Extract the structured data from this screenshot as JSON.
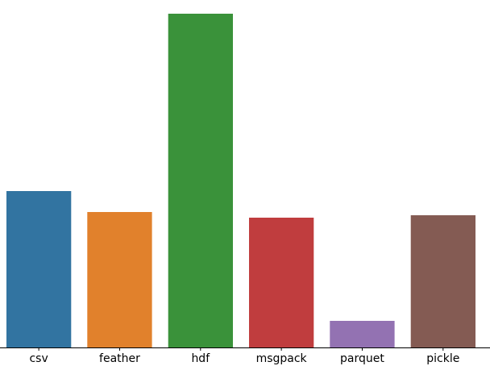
{
  "chart_data": {
    "type": "bar",
    "categories": [
      "csv",
      "feather",
      "hdf",
      "msgpack",
      "parquet",
      "pickle"
    ],
    "values": [
      194,
      168,
      414,
      161,
      33,
      164
    ],
    "colors": [
      "#3274a1",
      "#e1812c",
      "#3a923a",
      "#c03d3e",
      "#9372b2",
      "#845b53"
    ],
    "title": "",
    "xlabel": "",
    "ylabel": "",
    "ylim": [
      0,
      414
    ],
    "grid": false,
    "legend": "none"
  }
}
